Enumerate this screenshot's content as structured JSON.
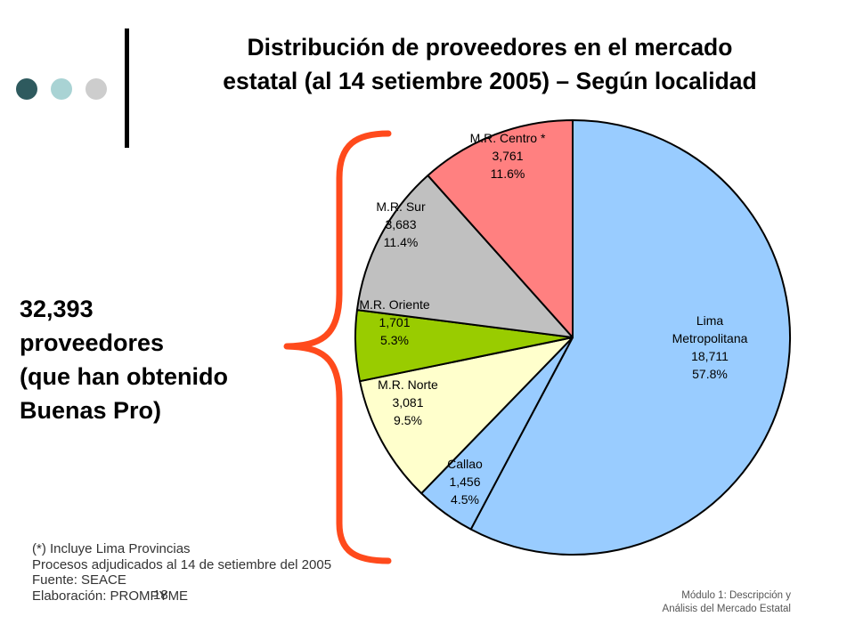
{
  "title": {
    "line1": "Distribución de proveedores en el mercado",
    "line2": "estatal (al 14 setiembre 2005) – Según localidad"
  },
  "total_text": {
    "line1": "32,393",
    "line2": "proveedores",
    "line3": "(que han obtenido",
    "line4": "Buenas Pro)"
  },
  "footnote": {
    "line1": "(*) Incluye Lima Provincias",
    "line2": "Procesos adjudicados al 14 de setiembre del 2005",
    "line3": "Fuente: SEACE",
    "line4": "Elaboración: PROMPYME"
  },
  "page_number": "18",
  "module_caption": {
    "line1": "Módulo 1: Descripción y",
    "line2": "Análisis del Mercado Estatal"
  },
  "colors": {
    "dot1": "#2e5a5e",
    "dot2": "#a9d3d4",
    "dot3": "#cdcdcd",
    "bracket": "#ff4a1c"
  },
  "chart_data": {
    "type": "pie",
    "title": "Distribución de proveedores en el mercado estatal (al 14 setiembre 2005) – Según localidad",
    "slices": [
      {
        "label_lines": [
          "Lima",
          "Metropolitana"
        ],
        "value": 18711,
        "value_text": "18,711",
        "percent": 57.8,
        "percent_text": "57.8%",
        "color": "#99ccff"
      },
      {
        "label_lines": [
          "Callao"
        ],
        "value": 1456,
        "value_text": "1,456",
        "percent": 4.5,
        "percent_text": "4.5%",
        "color": "#99ccff"
      },
      {
        "label_lines": [
          "M.R. Norte"
        ],
        "value": 3081,
        "value_text": "3,081",
        "percent": 9.5,
        "percent_text": "9.5%",
        "color": "#ffffcc"
      },
      {
        "label_lines": [
          "M.R. Oriente"
        ],
        "value": 1701,
        "value_text": "1,701",
        "percent": 5.3,
        "percent_text": "5.3%",
        "color": "#99cc00"
      },
      {
        "label_lines": [
          "M.R. Sur"
        ],
        "value": 3683,
        "value_text": "3,683",
        "percent": 11.4,
        "percent_text": "11.4%",
        "color": "#c0c0c0"
      },
      {
        "label_lines": [
          "M.R. Centro *"
        ],
        "value": 3761,
        "value_text": "3,761",
        "percent": 11.6,
        "percent_text": "11.6%",
        "color": "#ff8080"
      }
    ]
  }
}
